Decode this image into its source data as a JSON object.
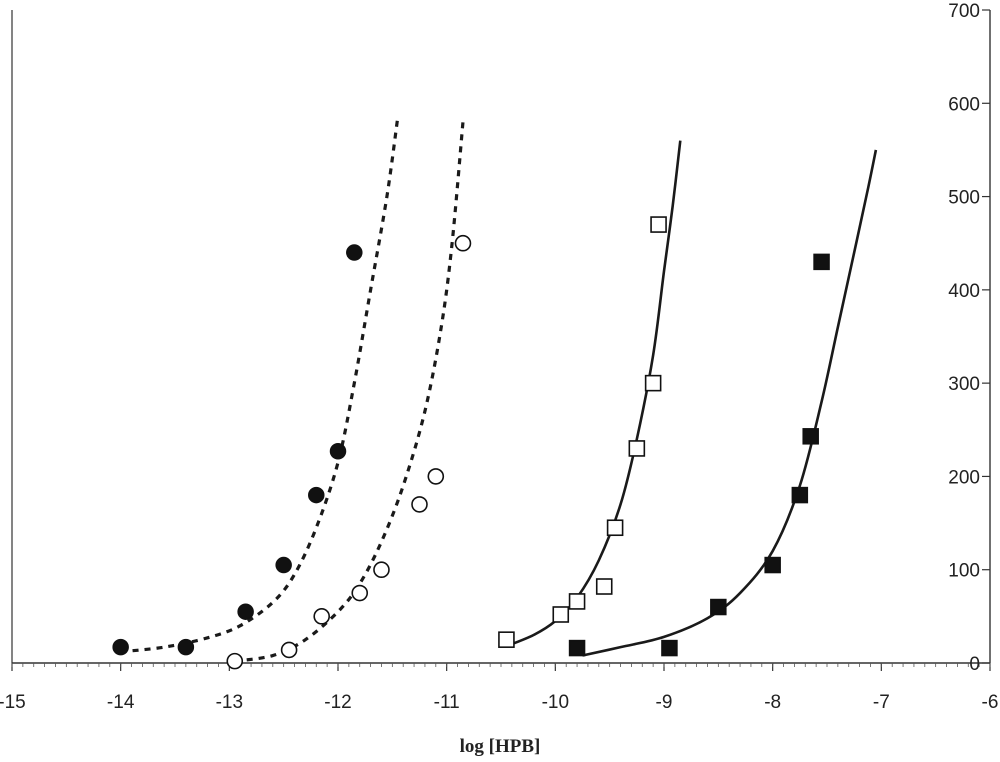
{
  "chart_data": {
    "type": "scatter",
    "title": "",
    "xlabel": "log [HPB]",
    "ylabel": "",
    "xlim": [
      -15,
      -6
    ],
    "ylim": [
      0,
      700
    ],
    "x_ticks": [
      -15,
      -14,
      -13,
      -12,
      -11,
      -10,
      -9,
      -8,
      -7,
      -6
    ],
    "x_tick_labels": [
      "-15",
      "-14",
      "-13",
      "-12",
      "-11",
      "-10",
      "-9",
      "-8",
      "-7",
      "-6"
    ],
    "y_ticks": [
      0,
      100,
      200,
      300,
      400,
      500,
      600,
      700
    ],
    "y_tick_labels": [
      "0",
      "100",
      "200",
      "300",
      "400",
      "500",
      "600",
      "700"
    ],
    "y_axis_position": "right",
    "grid": false,
    "legend": "none",
    "series": [
      {
        "marker": "filled-circle",
        "points": [
          [
            -14.0,
            17
          ],
          [
            -13.4,
            17
          ],
          [
            -12.85,
            55
          ],
          [
            -12.5,
            105
          ],
          [
            -12.2,
            180
          ],
          [
            -12.0,
            227
          ],
          [
            -11.85,
            440
          ]
        ],
        "fit_style": "dashed",
        "fit": [
          [
            -14.0,
            12
          ],
          [
            -13.6,
            17
          ],
          [
            -13.2,
            27
          ],
          [
            -12.9,
            40
          ],
          [
            -12.6,
            65
          ],
          [
            -12.4,
            95
          ],
          [
            -12.2,
            145
          ],
          [
            -12.0,
            215
          ],
          [
            -11.85,
            300
          ],
          [
            -11.7,
            400
          ],
          [
            -11.55,
            500
          ],
          [
            -11.45,
            585
          ]
        ]
      },
      {
        "marker": "open-circle",
        "points": [
          [
            -12.95,
            2
          ],
          [
            -12.45,
            14
          ],
          [
            -12.15,
            50
          ],
          [
            -11.8,
            75
          ],
          [
            -11.6,
            100
          ],
          [
            -11.25,
            170
          ],
          [
            -11.1,
            200
          ],
          [
            -10.85,
            450
          ]
        ],
        "fit_style": "dashed",
        "fit": [
          [
            -12.95,
            2
          ],
          [
            -12.6,
            8
          ],
          [
            -12.3,
            25
          ],
          [
            -12.0,
            55
          ],
          [
            -11.8,
            85
          ],
          [
            -11.6,
            130
          ],
          [
            -11.4,
            190
          ],
          [
            -11.2,
            270
          ],
          [
            -11.05,
            360
          ],
          [
            -10.95,
            450
          ],
          [
            -10.85,
            580
          ]
        ]
      },
      {
        "marker": "open-square",
        "points": [
          [
            -10.45,
            25
          ],
          [
            -9.95,
            52
          ],
          [
            -9.8,
            66
          ],
          [
            -9.55,
            82
          ],
          [
            -9.45,
            145
          ],
          [
            -9.25,
            230
          ],
          [
            -9.1,
            300
          ],
          [
            -9.05,
            470
          ]
        ],
        "fit_style": "solid",
        "fit": [
          [
            -10.45,
            18
          ],
          [
            -10.2,
            30
          ],
          [
            -10.0,
            45
          ],
          [
            -9.8,
            70
          ],
          [
            -9.6,
            110
          ],
          [
            -9.4,
            170
          ],
          [
            -9.25,
            240
          ],
          [
            -9.1,
            330
          ],
          [
            -9.0,
            420
          ],
          [
            -8.92,
            490
          ],
          [
            -8.85,
            560
          ]
        ]
      },
      {
        "marker": "filled-square",
        "points": [
          [
            -9.8,
            16
          ],
          [
            -8.95,
            16
          ],
          [
            -8.5,
            60
          ],
          [
            -8.0,
            105
          ],
          [
            -7.75,
            180
          ],
          [
            -7.65,
            243
          ],
          [
            -7.55,
            430
          ]
        ],
        "fit_style": "solid",
        "fit": [
          [
            -9.75,
            8
          ],
          [
            -9.4,
            17
          ],
          [
            -9.0,
            28
          ],
          [
            -8.6,
            48
          ],
          [
            -8.3,
            75
          ],
          [
            -8.0,
            120
          ],
          [
            -7.75,
            190
          ],
          [
            -7.55,
            280
          ],
          [
            -7.4,
            360
          ],
          [
            -7.25,
            440
          ],
          [
            -7.12,
            510
          ],
          [
            -7.05,
            550
          ]
        ]
      }
    ]
  }
}
